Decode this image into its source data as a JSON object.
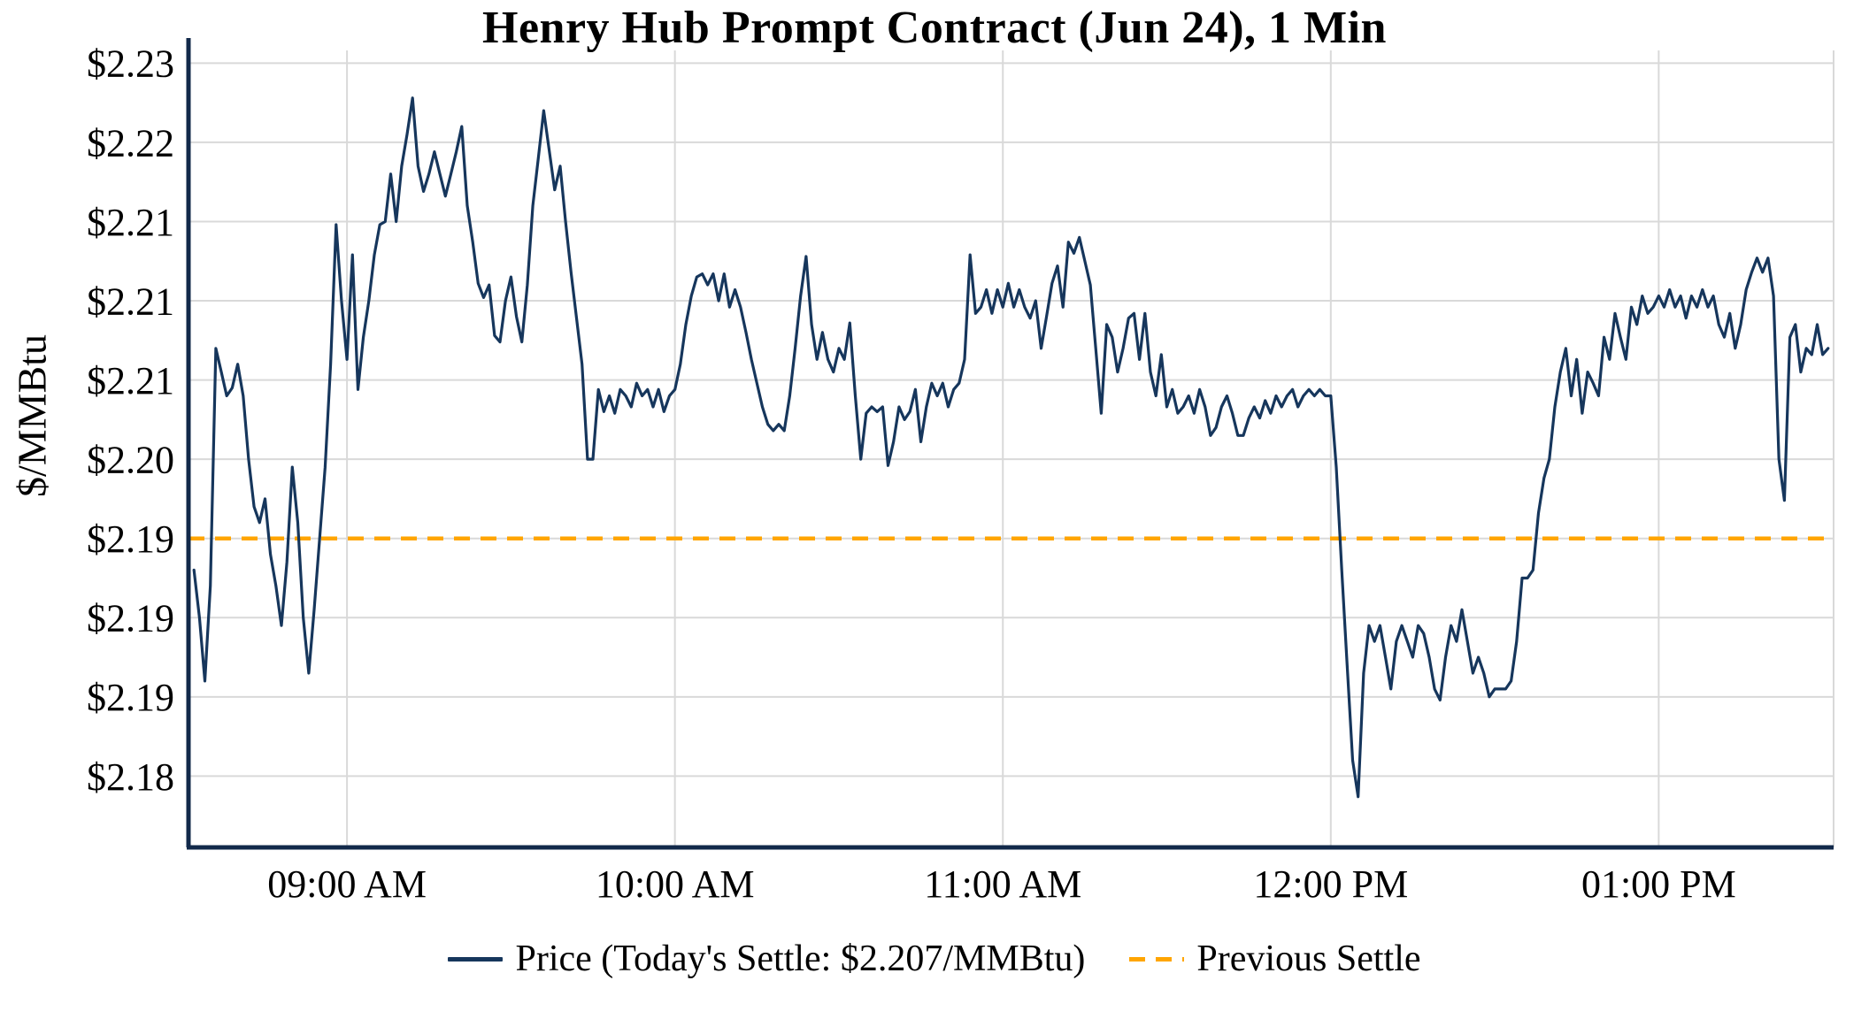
{
  "title": "Henry Hub Prompt Contract (Jun 24), 1 Min",
  "y_axis": {
    "label": "$/MMBtu"
  },
  "legend": {
    "price_label": "Price (Today's Settle: $2.207/MMBtu)",
    "settle_label": "Previous Settle"
  },
  "colors": {
    "price_line": "#16365c",
    "previous_settle": "#ffa500",
    "grid": "#d9d9d9",
    "axis": "#12294a",
    "text": "#000000",
    "background": "#ffffff"
  },
  "chart_data": {
    "type": "line",
    "title": "Henry Hub Prompt Contract (Jun 24), 1 Min",
    "xlabel": "",
    "ylabel": "$/MMBtu",
    "todays_settle": 2.207,
    "previous_settle": 2.195,
    "y_domain": [
      2.1755,
      2.2258
    ],
    "x_domain_minutes": [
      511,
      812
    ],
    "y_ticks": [
      {
        "label": "$2.23",
        "value": 2.225
      },
      {
        "label": "$2.22",
        "value": 2.22
      },
      {
        "label": "$2.21",
        "value": 2.215
      },
      {
        "label": "$2.21",
        "value": 2.21
      },
      {
        "label": "$2.21",
        "value": 2.205
      },
      {
        "label": "$2.20",
        "value": 2.2
      },
      {
        "label": "$2.19",
        "value": 2.195
      },
      {
        "label": "$2.19",
        "value": 2.19
      },
      {
        "label": "$2.19",
        "value": 2.185
      },
      {
        "label": "$2.18",
        "value": 2.18
      }
    ],
    "x_ticks": [
      {
        "label": "09:00 AM",
        "minute": 540
      },
      {
        "label": "10:00 AM",
        "minute": 600
      },
      {
        "label": "11:00 AM",
        "minute": 660
      },
      {
        "label": "12:00 PM",
        "minute": 720
      },
      {
        "label": "01:00 PM",
        "minute": 780
      }
    ],
    "x_start": "08:32",
    "x_interval_minutes": 1,
    "series": [
      {
        "name": "Price",
        "values": [
          2.193,
          2.19,
          2.186,
          2.192,
          2.207,
          2.2055,
          2.204,
          2.2045,
          2.206,
          2.204,
          2.2,
          2.197,
          2.196,
          2.1975,
          2.194,
          2.192,
          2.1895,
          2.1935,
          2.1995,
          2.196,
          2.19,
          2.1865,
          2.1905,
          2.195,
          2.1995,
          2.206,
          2.2148,
          2.21,
          2.2063,
          2.2129,
          2.2044,
          2.2077,
          2.21,
          2.2129,
          2.2148,
          2.215,
          2.218,
          2.215,
          2.2185,
          2.2205,
          2.2228,
          2.2185,
          2.2169,
          2.218,
          2.2194,
          2.218,
          2.2166,
          2.218,
          2.2194,
          2.221,
          2.216,
          2.2137,
          2.2111,
          2.2102,
          2.211,
          2.2078,
          2.2074,
          2.21,
          2.2115,
          2.209,
          2.2074,
          2.211,
          2.216,
          2.219,
          2.222,
          2.2195,
          2.217,
          2.2185,
          2.215,
          2.2118,
          2.2089,
          2.206,
          2.2,
          2.2,
          2.2044,
          2.203,
          2.204,
          2.2029,
          2.2044,
          2.204,
          2.2033,
          2.2048,
          2.204,
          2.2044,
          2.2033,
          2.2044,
          2.203,
          2.204,
          2.2044,
          2.206,
          2.2085,
          2.2103,
          2.2115,
          2.2117,
          2.211,
          2.2117,
          2.21,
          2.2117,
          2.2096,
          2.2107,
          2.2096,
          2.208,
          2.2063,
          2.2048,
          2.2033,
          2.2022,
          2.2018,
          2.2022,
          2.2018,
          2.204,
          2.207,
          2.2103,
          2.2128,
          2.2085,
          2.2063,
          2.208,
          2.2063,
          2.2055,
          2.207,
          2.2063,
          2.2086,
          2.204,
          2.2,
          2.2029,
          2.2033,
          2.203,
          2.2033,
          2.1996,
          2.2011,
          2.2033,
          2.2025,
          2.203,
          2.2044,
          2.2011,
          2.2033,
          2.2048,
          2.204,
          2.2048,
          2.2033,
          2.2044,
          2.2048,
          2.2063,
          2.2129,
          2.2092,
          2.2096,
          2.2107,
          2.2092,
          2.2107,
          2.2096,
          2.2111,
          2.2096,
          2.2107,
          2.2096,
          2.2089,
          2.21,
          2.207,
          2.209,
          2.2111,
          2.2122,
          2.2096,
          2.2137,
          2.213,
          2.214,
          2.2125,
          2.211,
          2.207,
          2.2029,
          2.2085,
          2.2077,
          2.2055,
          2.207,
          2.2089,
          2.2092,
          2.2063,
          2.2092,
          2.2055,
          2.204,
          2.2066,
          2.2033,
          2.2044,
          2.2029,
          2.2033,
          2.204,
          2.2029,
          2.2044,
          2.2033,
          2.2015,
          2.202,
          2.2033,
          2.204,
          2.2029,
          2.2015,
          2.2015,
          2.2026,
          2.2033,
          2.2026,
          2.2037,
          2.2029,
          2.204,
          2.2033,
          2.204,
          2.2044,
          2.2033,
          2.204,
          2.2044,
          2.204,
          2.2044,
          2.204,
          2.204,
          2.1995,
          2.193,
          2.187,
          2.181,
          2.1787,
          2.1865,
          2.1895,
          2.1885,
          2.1895,
          2.1875,
          2.1855,
          2.1885,
          2.1895,
          2.1885,
          2.1875,
          2.1895,
          2.189,
          2.1875,
          2.1855,
          2.1848,
          2.1875,
          2.1895,
          2.1885,
          2.1905,
          2.1885,
          2.1865,
          2.1875,
          2.1865,
          2.185,
          2.1855,
          2.1855,
          2.1855,
          2.186,
          2.1885,
          2.1925,
          2.1925,
          2.193,
          2.1966,
          2.1988,
          2.2,
          2.2033,
          2.2055,
          2.207,
          2.204,
          2.2063,
          2.2029,
          2.2055,
          2.2048,
          2.204,
          2.2077,
          2.2063,
          2.2092,
          2.2077,
          2.2063,
          2.2096,
          2.2085,
          2.2103,
          2.2092,
          2.2096,
          2.2103,
          2.2096,
          2.2107,
          2.2096,
          2.2103,
          2.2089,
          2.2103,
          2.2096,
          2.2107,
          2.2096,
          2.2103,
          2.2085,
          2.2077,
          2.2092,
          2.207,
          2.2085,
          2.2107,
          2.2118,
          2.2127,
          2.2118,
          2.2127,
          2.2103,
          2.2,
          2.1974,
          2.2077,
          2.2085,
          2.2055,
          2.207,
          2.2066,
          2.2085,
          2.2066,
          2.207
        ]
      }
    ],
    "legend_position": "bottom",
    "grid": true
  }
}
